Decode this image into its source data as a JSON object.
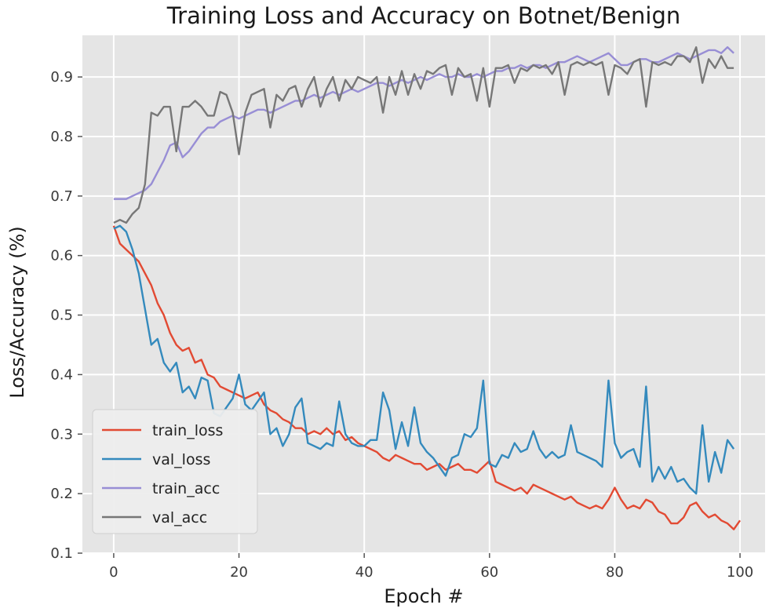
{
  "chart_data": {
    "type": "line",
    "title": "Training Loss and Accuracy on Botnet/Benign",
    "xlabel": "Epoch #",
    "ylabel": "Loss/Accuracy  (%)",
    "xlim": [
      -5,
      104
    ],
    "ylim": [
      0.1,
      0.97
    ],
    "xticks": [
      0,
      20,
      40,
      60,
      80,
      100
    ],
    "yticks": [
      0.1,
      0.2,
      0.3,
      0.4,
      0.5,
      0.6,
      0.7,
      0.8,
      0.9
    ],
    "grid": true,
    "legend_position": "lower-left",
    "series": [
      {
        "name": "train_loss",
        "color": "#E24A33",
        "values": [
          0.65,
          0.62,
          0.61,
          0.6,
          0.59,
          0.57,
          0.55,
          0.52,
          0.5,
          0.47,
          0.45,
          0.44,
          0.445,
          0.42,
          0.425,
          0.4,
          0.395,
          0.38,
          0.375,
          0.37,
          0.365,
          0.36,
          0.365,
          0.37,
          0.35,
          0.34,
          0.335,
          0.325,
          0.32,
          0.31,
          0.31,
          0.3,
          0.305,
          0.3,
          0.31,
          0.3,
          0.305,
          0.29,
          0.295,
          0.285,
          0.28,
          0.275,
          0.27,
          0.26,
          0.255,
          0.265,
          0.26,
          0.255,
          0.25,
          0.25,
          0.24,
          0.245,
          0.25,
          0.24,
          0.245,
          0.25,
          0.24,
          0.24,
          0.235,
          0.245,
          0.255,
          0.22,
          0.215,
          0.21,
          0.205,
          0.21,
          0.2,
          0.215,
          0.21,
          0.205,
          0.2,
          0.195,
          0.19,
          0.195,
          0.185,
          0.18,
          0.175,
          0.18,
          0.175,
          0.19,
          0.21,
          0.19,
          0.175,
          0.18,
          0.175,
          0.19,
          0.185,
          0.17,
          0.165,
          0.15,
          0.15,
          0.16,
          0.18,
          0.185,
          0.17,
          0.16,
          0.165,
          0.155,
          0.15,
          0.14,
          0.155
        ]
      },
      {
        "name": "val_loss",
        "color": "#348ABD",
        "values": [
          0.645,
          0.65,
          0.64,
          0.61,
          0.57,
          0.51,
          0.45,
          0.46,
          0.42,
          0.405,
          0.42,
          0.37,
          0.38,
          0.36,
          0.395,
          0.39,
          0.335,
          0.33,
          0.345,
          0.36,
          0.4,
          0.35,
          0.34,
          0.355,
          0.37,
          0.3,
          0.31,
          0.28,
          0.3,
          0.345,
          0.36,
          0.285,
          0.28,
          0.275,
          0.285,
          0.28,
          0.355,
          0.3,
          0.285,
          0.28,
          0.28,
          0.29,
          0.29,
          0.37,
          0.34,
          0.275,
          0.32,
          0.28,
          0.345,
          0.285,
          0.27,
          0.26,
          0.245,
          0.23,
          0.26,
          0.265,
          0.3,
          0.295,
          0.31,
          0.39,
          0.25,
          0.245,
          0.265,
          0.26,
          0.285,
          0.27,
          0.275,
          0.305,
          0.275,
          0.26,
          0.27,
          0.26,
          0.265,
          0.315,
          0.27,
          0.265,
          0.26,
          0.255,
          0.245,
          0.39,
          0.285,
          0.26,
          0.27,
          0.275,
          0.245,
          0.38,
          0.22,
          0.245,
          0.225,
          0.245,
          0.22,
          0.225,
          0.21,
          0.2,
          0.315,
          0.22,
          0.27,
          0.235,
          0.29,
          0.275
        ]
      },
      {
        "name": "train_acc",
        "color": "#988ED5",
        "values": [
          0.695,
          0.695,
          0.695,
          0.7,
          0.705,
          0.71,
          0.72,
          0.74,
          0.76,
          0.785,
          0.79,
          0.765,
          0.775,
          0.79,
          0.805,
          0.815,
          0.815,
          0.825,
          0.83,
          0.835,
          0.83,
          0.835,
          0.84,
          0.845,
          0.845,
          0.84,
          0.845,
          0.85,
          0.855,
          0.86,
          0.86,
          0.865,
          0.87,
          0.865,
          0.87,
          0.875,
          0.87,
          0.875,
          0.88,
          0.875,
          0.88,
          0.885,
          0.89,
          0.89,
          0.885,
          0.89,
          0.895,
          0.89,
          0.895,
          0.9,
          0.895,
          0.9,
          0.905,
          0.9,
          0.9,
          0.905,
          0.9,
          0.9,
          0.905,
          0.9,
          0.905,
          0.91,
          0.91,
          0.915,
          0.915,
          0.92,
          0.915,
          0.92,
          0.92,
          0.915,
          0.92,
          0.925,
          0.925,
          0.93,
          0.935,
          0.93,
          0.925,
          0.93,
          0.935,
          0.94,
          0.93,
          0.92,
          0.92,
          0.925,
          0.93,
          0.93,
          0.925,
          0.925,
          0.93,
          0.935,
          0.94,
          0.935,
          0.93,
          0.935,
          0.94,
          0.945,
          0.945,
          0.94,
          0.95,
          0.94
        ]
      },
      {
        "name": "val_acc",
        "color": "#777777",
        "values": [
          0.655,
          0.66,
          0.655,
          0.67,
          0.68,
          0.72,
          0.84,
          0.835,
          0.85,
          0.85,
          0.775,
          0.85,
          0.85,
          0.86,
          0.85,
          0.835,
          0.835,
          0.875,
          0.87,
          0.84,
          0.77,
          0.84,
          0.87,
          0.875,
          0.88,
          0.815,
          0.87,
          0.86,
          0.88,
          0.885,
          0.85,
          0.88,
          0.9,
          0.85,
          0.88,
          0.9,
          0.86,
          0.895,
          0.88,
          0.9,
          0.895,
          0.89,
          0.9,
          0.84,
          0.9,
          0.87,
          0.91,
          0.87,
          0.905,
          0.88,
          0.91,
          0.905,
          0.915,
          0.92,
          0.87,
          0.915,
          0.9,
          0.905,
          0.86,
          0.915,
          0.85,
          0.915,
          0.915,
          0.92,
          0.89,
          0.915,
          0.91,
          0.92,
          0.915,
          0.92,
          0.905,
          0.925,
          0.87,
          0.92,
          0.925,
          0.92,
          0.925,
          0.92,
          0.925,
          0.87,
          0.92,
          0.915,
          0.905,
          0.925,
          0.93,
          0.85,
          0.925,
          0.92,
          0.925,
          0.92,
          0.935,
          0.935,
          0.925,
          0.95,
          0.89,
          0.93,
          0.915,
          0.935,
          0.915,
          0.915
        ]
      }
    ]
  }
}
